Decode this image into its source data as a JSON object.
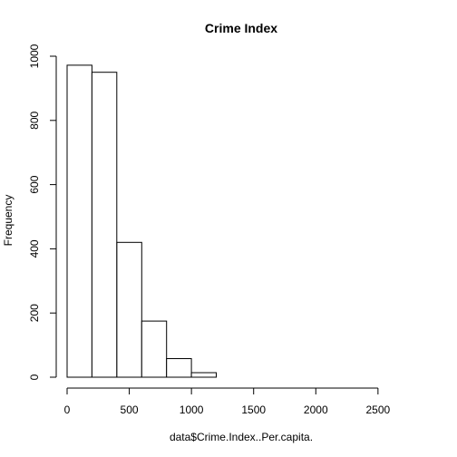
{
  "chart_data": {
    "type": "bar",
    "title": "Crime Index",
    "xlabel": "data$Crime.Index..Per.capita.",
    "ylabel": "Frequency",
    "bins": [
      {
        "from": 0,
        "to": 200,
        "count": 972
      },
      {
        "from": 200,
        "to": 400,
        "count": 950
      },
      {
        "from": 400,
        "to": 600,
        "count": 420
      },
      {
        "from": 600,
        "to": 800,
        "count": 175
      },
      {
        "from": 800,
        "to": 1000,
        "count": 58
      },
      {
        "from": 1000,
        "to": 1200,
        "count": 14
      },
      {
        "from": 1200,
        "to": 1400,
        "count": 0
      },
      {
        "from": 1400,
        "to": 1600,
        "count": 0
      },
      {
        "from": 1600,
        "to": 1800,
        "count": 0
      },
      {
        "from": 1800,
        "to": 2000,
        "count": 0
      },
      {
        "from": 2000,
        "to": 2200,
        "count": 0
      },
      {
        "from": 2200,
        "to": 2400,
        "count": 0
      },
      {
        "from": 2400,
        "to": 2600,
        "count": 0
      },
      {
        "from": 2600,
        "to": 2800,
        "count": 0
      }
    ],
    "xlim": [
      0,
      2800
    ],
    "ylim": [
      0,
      1000
    ],
    "x_ticks": [
      "0",
      "500",
      "1000",
      "1500",
      "2000",
      "2500"
    ],
    "y_ticks": [
      "0",
      "200",
      "400",
      "600",
      "800",
      "1000"
    ],
    "grid": false,
    "legend": "none"
  }
}
